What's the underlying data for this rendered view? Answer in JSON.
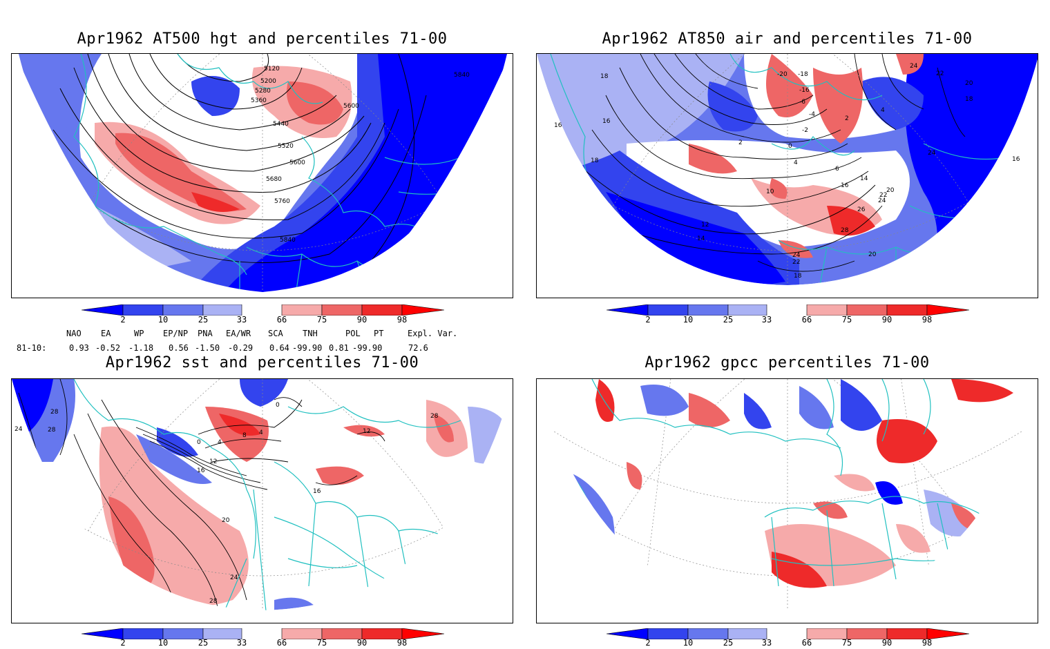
{
  "panels": [
    {
      "id": "p1",
      "title": "Apr1962 AT500 hgt and percentiles 71-00",
      "contour_labels": [
        "5120",
        "5200",
        "5280",
        "5360",
        "5440",
        "5520",
        "5600",
        "5600",
        "5680",
        "5760",
        "5840",
        "5840"
      ]
    },
    {
      "id": "p2",
      "title": "Apr1962 AT850 air and percentiles 71-00",
      "contour_labels": [
        "18",
        "16",
        "16",
        "18",
        "-20",
        "-18",
        "-16",
        "-6",
        "-4",
        "-2",
        "2",
        "0",
        "2",
        "4",
        "6",
        "10",
        "12",
        "14",
        "16",
        "14",
        "20",
        "22",
        "24",
        "26",
        "28",
        "24",
        "22",
        "20",
        "18",
        "24",
        "22",
        "20",
        "18",
        "4",
        "24",
        "16"
      ]
    },
    {
      "id": "p3",
      "title": "Apr1962 sst and percentiles 71-00",
      "contour_labels": [
        "28",
        "24",
        "28",
        "0",
        "4",
        "8",
        "4",
        "0",
        "12",
        "16",
        "16",
        "20",
        "24",
        "28",
        "12",
        "28"
      ]
    },
    {
      "id": "p4",
      "title": "Apr1962 gpcc percentiles 71-00",
      "contour_labels": []
    }
  ],
  "colorbar": {
    "labels": [
      "2",
      "10",
      "25",
      "33",
      "66",
      "75",
      "90",
      "98"
    ],
    "colors": {
      "below_2": "#0000ff",
      "2_10": "#3344ee",
      "10_25": "#6677ee",
      "25_33": "#aab2f4",
      "33_66": "#ffffff",
      "66_75": "#f6aaaa",
      "75_90": "#ee6666",
      "90_98": "#ee2a2a",
      "above_98": "#ff0000"
    }
  },
  "indices": {
    "header": [
      "NAO",
      "EA",
      "WP",
      "EP/NP",
      "PNA",
      "EA/WR",
      "SCA",
      "TNH",
      "POL",
      "PT",
      "Expl. Var."
    ],
    "row_label": "81-10:",
    "values": [
      "0.93",
      "-0.52",
      "-1.18",
      "0.56",
      "-1.50",
      "-0.29",
      "0.64",
      "-99.90",
      "0.81",
      "-99.90",
      "72.6"
    ]
  },
  "colors": {
    "coast": "#20c0c0",
    "contour": "#000000",
    "grid": "#888888"
  }
}
